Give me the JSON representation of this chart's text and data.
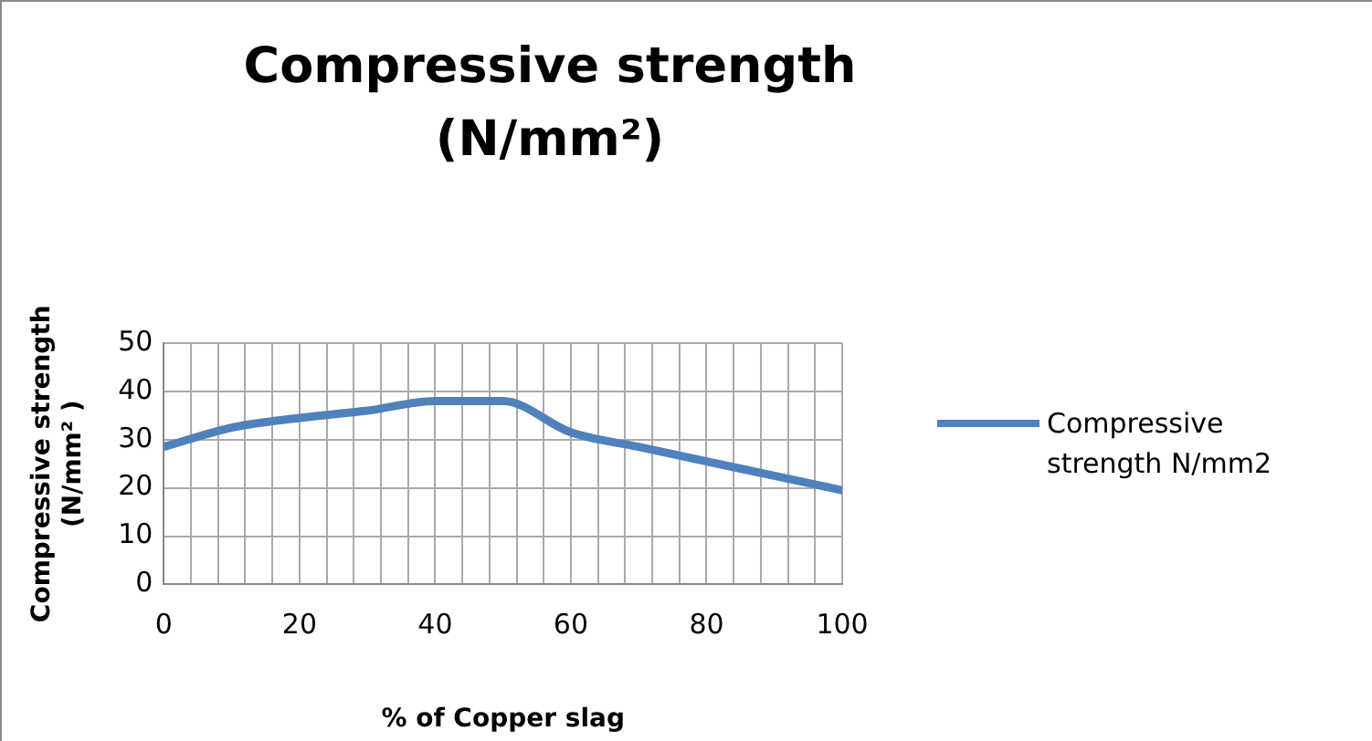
{
  "chart_data": {
    "type": "line",
    "title": "Compressive strength (N/mm²)",
    "xlabel": "% of Copper slag",
    "ylabel": "Compressive strength (N/mm² )",
    "x": [
      0,
      10,
      20,
      30,
      40,
      50,
      60,
      70,
      80,
      90,
      100
    ],
    "series": [
      {
        "name": "Compressive strength N/mm2",
        "color": "#4f81bd",
        "values": [
          28.5,
          32.5,
          34.5,
          36,
          38,
          38,
          31.5,
          28.5,
          25.5,
          22.5,
          19.5
        ]
      }
    ],
    "xlim": [
      0,
      100
    ],
    "xticks": [
      0,
      {
        "value": 4,
        "label": null
      },
      {
        "value": 8,
        "label": null
      },
      {
        "value": 12,
        "label": null
      },
      {
        "value": 16,
        "label": null
      },
      20,
      {
        "value": 24,
        "label": null
      },
      {
        "value": 28,
        "label": null
      },
      {
        "value": 32,
        "label": null
      },
      {
        "value": 36,
        "label": null
      },
      40,
      {
        "value": 44,
        "label": null
      },
      {
        "value": 48,
        "label": null
      },
      {
        "value": 52,
        "label": null
      },
      {
        "value": 56,
        "label": null
      },
      60,
      {
        "value": 64,
        "label": null
      },
      {
        "value": 68,
        "label": null
      },
      {
        "value": 72,
        "label": null
      },
      {
        "value": 76,
        "label": null
      },
      80,
      {
        "value": 84,
        "label": null
      },
      {
        "value": 88,
        "label": null
      },
      {
        "value": 92,
        "label": null
      },
      {
        "value": 96,
        "label": null
      },
      100
    ],
    "ylim": [
      0,
      50
    ],
    "yticks": [
      0,
      10,
      20,
      30,
      40,
      50
    ],
    "grid": true,
    "legend": "right",
    "marker": "none",
    "line_style": "solid"
  }
}
